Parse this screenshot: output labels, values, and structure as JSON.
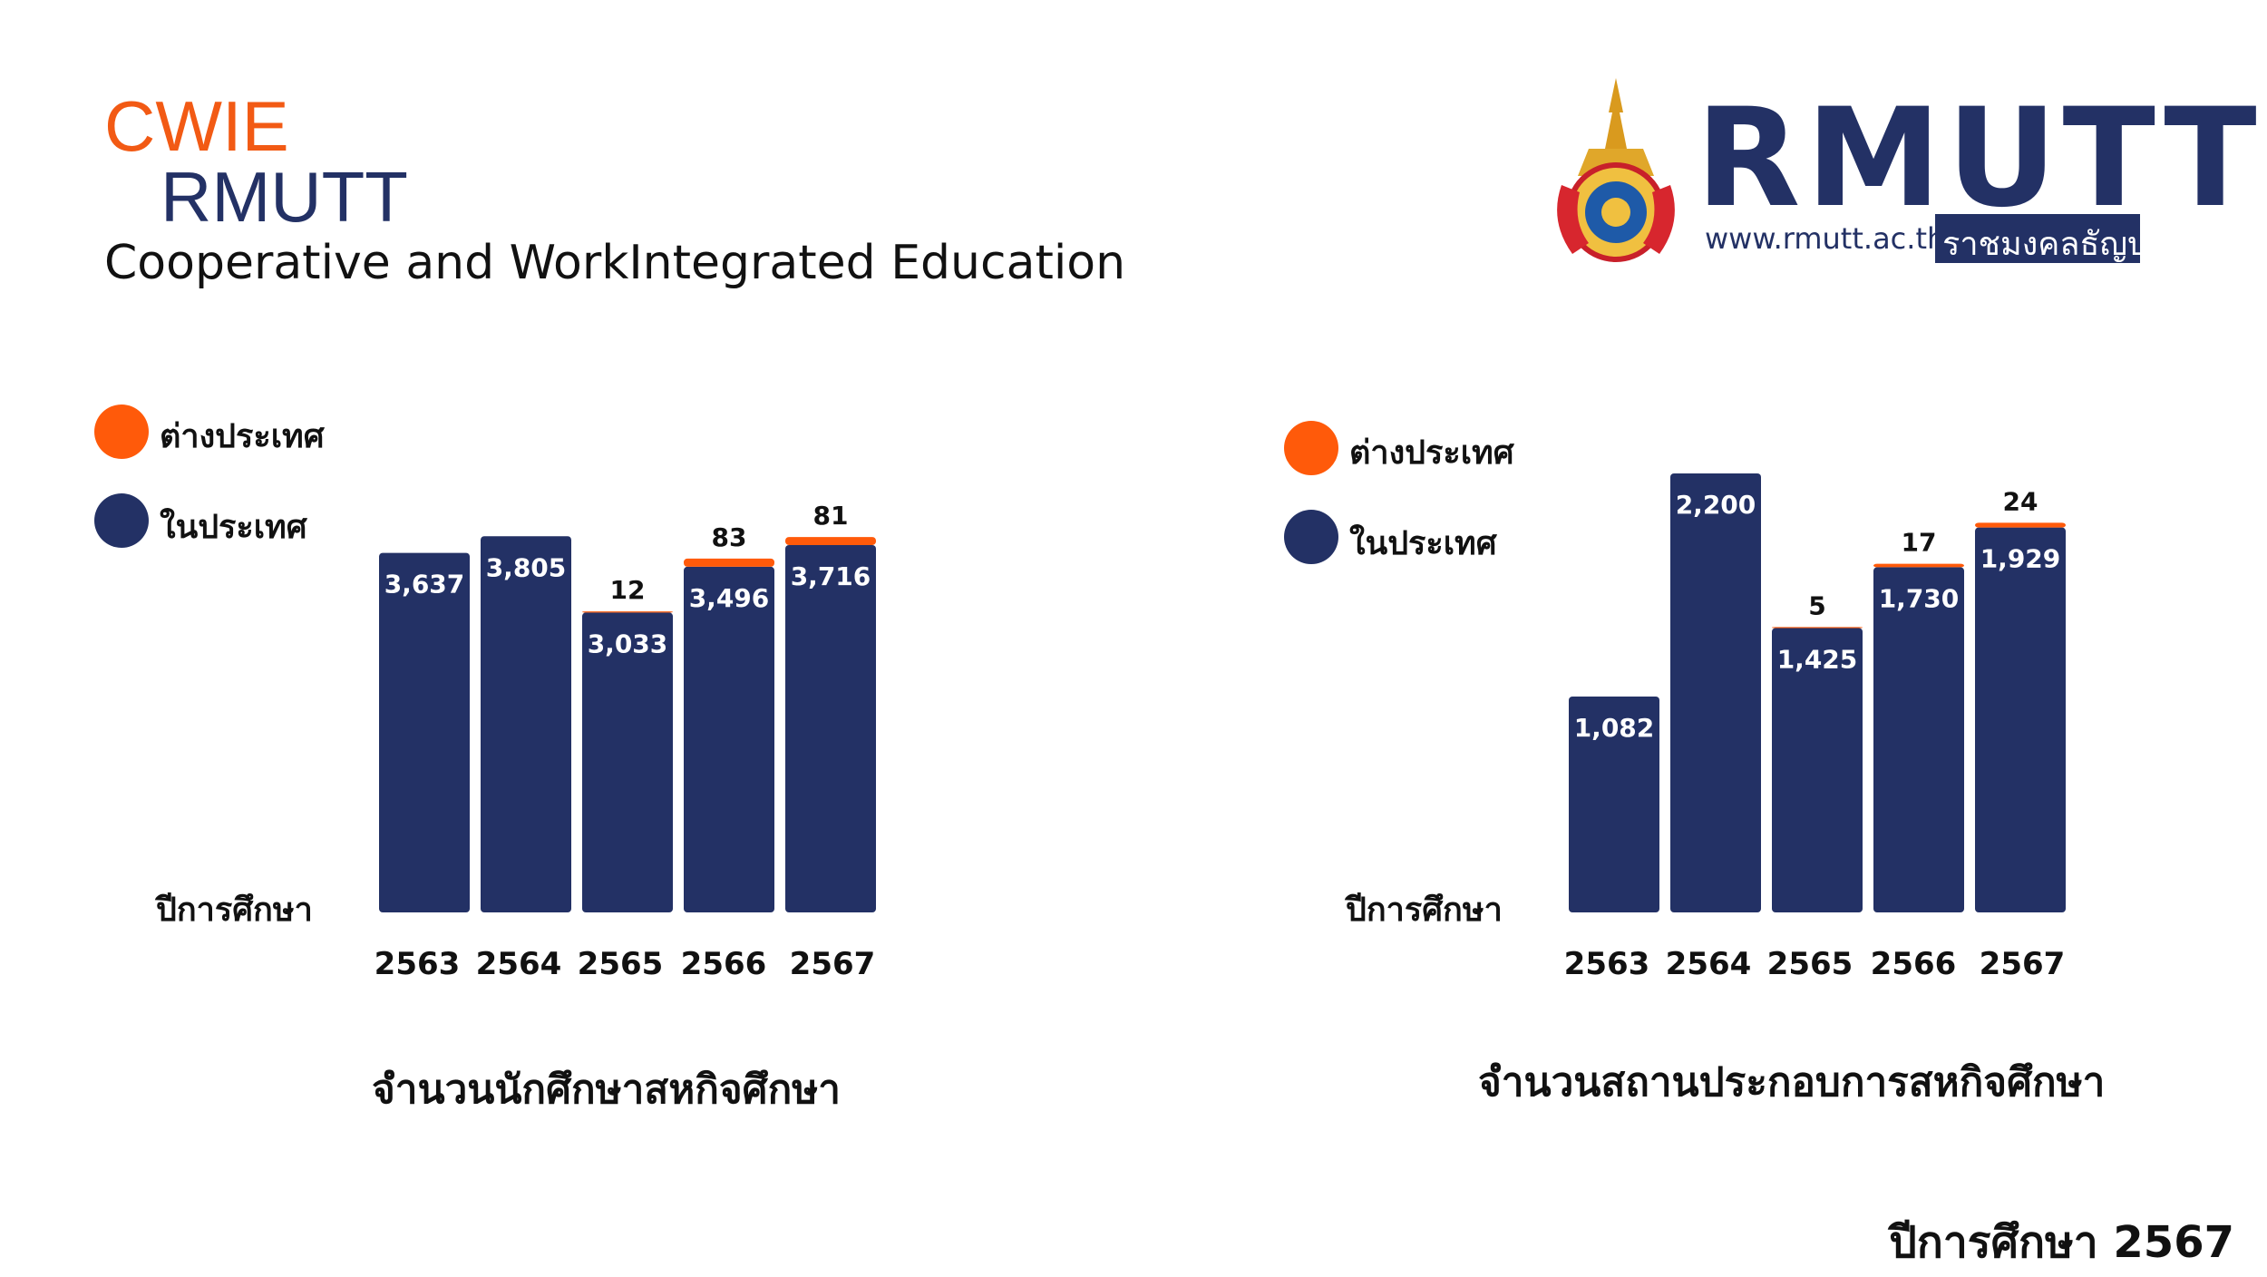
{
  "brand": {
    "line1": "CWIE",
    "line2": "RMUTT",
    "subtitle": "Cooperative and WorkIntegrated Education"
  },
  "logo": {
    "wordmark": "RMUTT",
    "url": "www.rmutt.ac.th",
    "thai_name": "ราชมงคลธัญบุรี",
    "seal_icon": "university-seal-icon"
  },
  "legend_labels": {
    "foreign": "ต่างประเทศ",
    "domestic": "ในประเทศ"
  },
  "colors": {
    "foreign": "#ff5a0a",
    "domestic": "#233165",
    "text": "#111111"
  },
  "footer": {
    "year_label": "ปีการศึกษา 2567"
  },
  "chart_data": [
    {
      "type": "bar",
      "stacked": true,
      "title": "จำนวนนักศึกษาสหกิจศึกษา",
      "xlabel": "ปีการศึกษา",
      "ylabel": "",
      "categories": [
        "2563",
        "2564",
        "2565",
        "2566",
        "2567"
      ],
      "series": [
        {
          "name": "ในประเทศ",
          "values": [
            3637,
            3805,
            3033,
            3496,
            3716
          ],
          "labels": [
            "3,637",
            "3,805",
            "3,033",
            "3,496",
            "3,716"
          ]
        },
        {
          "name": "ต่างประเทศ",
          "values": [
            0,
            0,
            12,
            83,
            81
          ],
          "labels": [
            "",
            "",
            "12",
            "83",
            "81"
          ]
        }
      ],
      "ylim": [
        0,
        4000
      ],
      "grid": false,
      "legend": "top-left"
    },
    {
      "type": "bar",
      "stacked": true,
      "title": "จำนวนสถานประกอบการสหกิจศึกษา",
      "xlabel": "ปีการศึกษา",
      "ylabel": "",
      "categories": [
        "2563",
        "2564",
        "2565",
        "2566",
        "2567"
      ],
      "series": [
        {
          "name": "ในประเทศ",
          "values": [
            1082,
            2200,
            1425,
            1730,
            1929
          ],
          "labels": [
            "1,082",
            "2,200",
            "1,425",
            "1,730",
            "1,929"
          ]
        },
        {
          "name": "ต่างประเทศ",
          "values": [
            0,
            0,
            5,
            17,
            24
          ],
          "labels": [
            "",
            "",
            "5",
            "17",
            "24"
          ]
        }
      ],
      "ylim": [
        0,
        2200
      ],
      "grid": false,
      "legend": "top-left"
    }
  ]
}
